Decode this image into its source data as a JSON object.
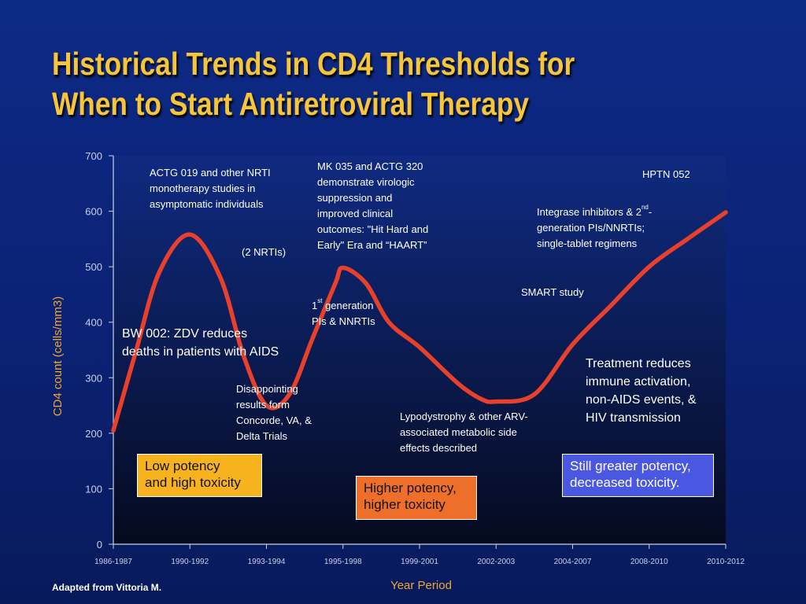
{
  "title": {
    "line1": "Historical Trends in CD4 Thresholds for",
    "line2": "When to Start Antiretroviral Therapy"
  },
  "footer": {
    "credit": "Adapted from Vittoria M."
  },
  "chart_data": {
    "type": "line",
    "xlabel": "Year Period",
    "ylabel": "CD4 count (cells/mm3)",
    "ylim": [
      0,
      700
    ],
    "y_ticks": [
      "0",
      "100",
      "200",
      "300",
      "400",
      "500",
      "600",
      "700"
    ],
    "categories": [
      "1986-1987",
      "1990-1992",
      "1993-1994",
      "1995-1998",
      "1999-2001",
      "2002-2003",
      "2004-2007",
      "2008-2010",
      "2010-2012"
    ],
    "series": [
      {
        "color": "#e8402a",
        "x": [
          0,
          0.3,
          0.6,
          1.0,
          1.4,
          1.7,
          2.0,
          2.3,
          2.6,
          2.9,
          3.0,
          3.3,
          3.6,
          4.0,
          4.5,
          4.8,
          5.0,
          5.5,
          6.0,
          6.5,
          7.0,
          7.5,
          8.0
        ],
        "values": [
          205,
          350,
          490,
          558,
          480,
          340,
          250,
          270,
          370,
          470,
          498,
          470,
          400,
          355,
          290,
          262,
          257,
          270,
          360,
          430,
          500,
          550,
          598
        ]
      }
    ],
    "grid": false,
    "legend": "none"
  },
  "annotations": {
    "actg019": [
      "ACTG 019 and other NRTI",
      "monotherapy studies in",
      "asymptomatic individuals"
    ],
    "two_nrtis": "(2 NRTIs)",
    "bw002": [
      "BW 002: ZDV reduces",
      "deaths in patients with AIDS"
    ],
    "disappointing": [
      "Disappointing",
      "results form",
      "Concorde, VA, &",
      "Delta Trials"
    ],
    "mk035": [
      "MK 035 and ACTG 320",
      "demonstrate virologic",
      "suppression and",
      "improved clinical",
      "outcomes: \"Hit Hard and",
      "Early\" Era and “HAART”"
    ],
    "first_gen": {
      "sup": "st",
      "pre": "1",
      "line1_rest": " generation",
      "line2": "PIs & NNRTIs"
    },
    "lipodystrophy": [
      "Lypodystrophy & other ARV-",
      "associated metabolic side",
      "effects described"
    ],
    "smart": "SMART study",
    "hptn": "HPTN 052",
    "integrase": {
      "line1_pre": "Integrase inhibitors & 2",
      "sup": "nd",
      "line1_post": "-",
      "line2": "generation PIs/NNRTIs;",
      "line3": "single-tablet regimens"
    },
    "treatment": [
      "Treatment reduces",
      "immune activation,",
      "non-AIDS events, &",
      "HIV transmission"
    ]
  },
  "boxes": {
    "low": [
      "Low potency",
      "and high toxicity"
    ],
    "higher": [
      "Higher potency,",
      "higher toxicity"
    ],
    "greater": [
      "Still greater potency,",
      "decreased toxicity."
    ]
  }
}
